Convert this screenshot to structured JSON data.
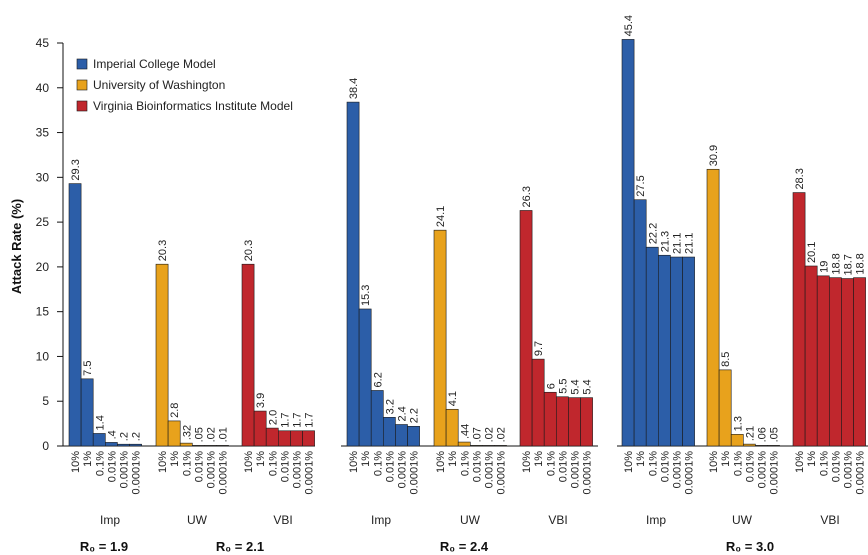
{
  "chart_data": {
    "type": "bar",
    "ylabel": "Attack Rate (%)",
    "ylim": [
      0,
      45
    ],
    "yticks": [
      0,
      5,
      10,
      15,
      20,
      25,
      30,
      35,
      40,
      45
    ],
    "categories": [
      "10%",
      "1%",
      "0.1%",
      "0.01%",
      "0.001%",
      "0.0001%"
    ],
    "models": [
      {
        "key": "imp",
        "short": "Imp",
        "name": "Imperial College Model",
        "color": "#2c5ea8"
      },
      {
        "key": "uw",
        "short": "UW",
        "name": "University of Washington",
        "color": "#e8a21c"
      },
      {
        "key": "vbi",
        "short": "VBI",
        "name": "Virginia Bioinformatics Institute Model",
        "color": "#c0272d"
      }
    ],
    "panels": [
      {
        "scenarios": [
          {
            "label": "R₀ = 1.9",
            "models": [
              "imp"
            ]
          },
          {
            "label": "R₀ = 2.1",
            "models": [
              "uw",
              "vbi"
            ]
          }
        ],
        "groups": [
          {
            "model": "imp",
            "values": [
              29.3,
              7.5,
              1.4,
              0.4,
              0.2,
              0.2
            ],
            "labels": [
              "29.3",
              "7.5",
              "1.4",
              ".4",
              ".2",
              ".2"
            ]
          },
          {
            "model": "uw",
            "values": [
              20.3,
              2.8,
              0.32,
              0.05,
              0.02,
              0.01
            ],
            "labels": [
              "20.3",
              "2.8",
              ".32",
              ".05",
              ".02",
              ".01"
            ]
          },
          {
            "model": "vbi",
            "values": [
              20.3,
              3.9,
              2.0,
              1.7,
              1.7,
              1.7
            ],
            "labels": [
              "20.3",
              "3.9",
              "2.0",
              "1.7",
              "1.7",
              "1.7"
            ]
          }
        ]
      },
      {
        "scenarios": [
          {
            "label": "R₀ = 2.4",
            "models": [
              "imp",
              "uw",
              "vbi"
            ]
          }
        ],
        "groups": [
          {
            "model": "imp",
            "values": [
              38.4,
              15.3,
              6.2,
              3.2,
              2.4,
              2.2
            ],
            "labels": [
              "38.4",
              "15.3",
              "6.2",
              "3.2",
              "2.4",
              "2.2"
            ]
          },
          {
            "model": "uw",
            "values": [
              24.1,
              4.1,
              0.44,
              0.07,
              0.02,
              0.02
            ],
            "labels": [
              "24.1",
              "4.1",
              ".44",
              ".07",
              ".02",
              ".02"
            ]
          },
          {
            "model": "vbi",
            "values": [
              26.3,
              9.7,
              6,
              5.5,
              5.4,
              5.4
            ],
            "labels": [
              "26.3",
              "9.7",
              "6",
              "5.5",
              "5.4",
              "5.4"
            ]
          }
        ]
      },
      {
        "scenarios": [
          {
            "label": "R₀ = 3.0",
            "models": [
              "imp",
              "uw",
              "vbi"
            ]
          }
        ],
        "groups": [
          {
            "model": "imp",
            "values": [
              45.4,
              27.5,
              22.2,
              21.3,
              21.1,
              21.1
            ],
            "labels": [
              "45.4",
              "27.5",
              "22.2",
              "21.3",
              "21.1",
              "21.1"
            ]
          },
          {
            "model": "uw",
            "values": [
              30.9,
              8.5,
              1.3,
              0.21,
              0.06,
              0.05
            ],
            "labels": [
              "30.9",
              "8.5",
              "1.3",
              ".21",
              ".06",
              ".05"
            ]
          },
          {
            "model": "vbi",
            "values": [
              28.3,
              20.1,
              19,
              18.8,
              18.7,
              18.8
            ],
            "labels": [
              "28.3",
              "20.1",
              "19",
              "18.8",
              "18.7",
              "18.8"
            ]
          }
        ]
      }
    ],
    "legend": {
      "position": "top-left",
      "entries": [
        "Imperial College Model",
        "University of Washington",
        "Virginia Bioinformatics Institute Model"
      ]
    },
    "grid": false
  }
}
